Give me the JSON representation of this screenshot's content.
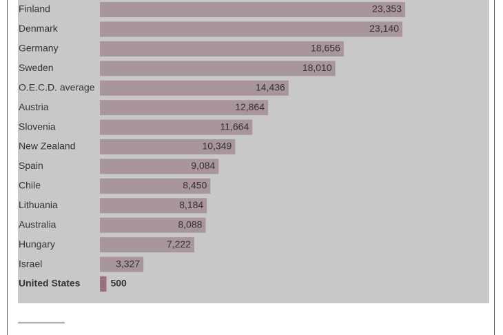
{
  "chart_data": {
    "type": "bar",
    "orientation": "horizontal",
    "categories": [
      "Finland",
      "Denmark",
      "Germany",
      "Sweden",
      "O.E.C.D. average",
      "Austria",
      "Slovenia",
      "New Zealand",
      "Spain",
      "Chile",
      "Lithuania",
      "Australia",
      "Hungary",
      "Israel",
      "United States"
    ],
    "values": [
      23353,
      23140,
      18656,
      18010,
      14436,
      12864,
      11664,
      10349,
      9084,
      8450,
      8184,
      8088,
      7222,
      3327,
      500
    ],
    "value_labels": [
      "23,353",
      "23,140",
      "18,656",
      "18,010",
      "14,436",
      "12,864",
      "11,664",
      "10,349",
      "9,084",
      "8,450",
      "8,184",
      "8,088",
      "7,222",
      "3,327",
      "500"
    ],
    "colors": [
      "#a9959c",
      "#a9959c",
      "#a9959c",
      "#a9959c",
      "#a9959c",
      "#a9959c",
      "#a9959c",
      "#a9959c",
      "#a9959c",
      "#a9959c",
      "#a9959c",
      "#a9959c",
      "#a9959c",
      "#a9959c",
      "#9a6f80"
    ]
  }
}
